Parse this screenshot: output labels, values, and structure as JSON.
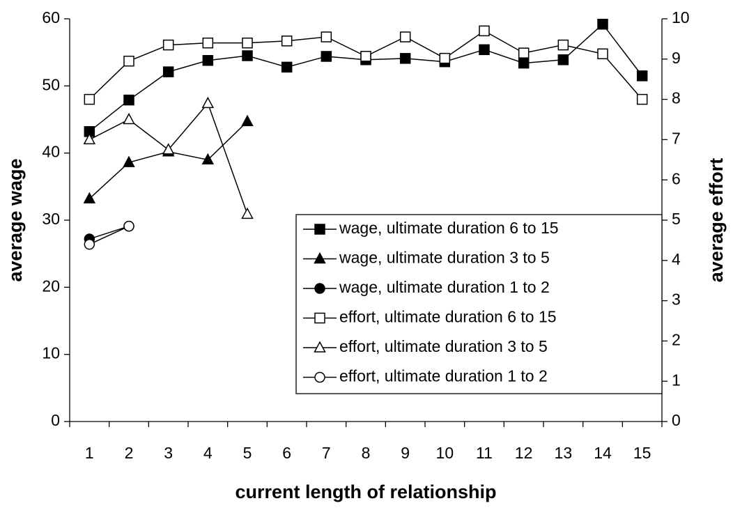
{
  "chart_data": {
    "type": "line",
    "x_label": "current length of relationship",
    "y_label": "average wage",
    "y2_label": "average effort",
    "categories": [
      "1",
      "2",
      "3",
      "4",
      "5",
      "6",
      "7",
      "8",
      "9",
      "10",
      "11",
      "12",
      "13",
      "14",
      "15"
    ],
    "ylim": [
      0,
      60
    ],
    "yticks": [
      0,
      10,
      20,
      30,
      40,
      50,
      60
    ],
    "y2lim": [
      0,
      10
    ],
    "y2ticks": [
      0,
      1,
      2,
      3,
      4,
      5,
      6,
      7,
      8,
      9,
      10
    ],
    "grid": false,
    "legend": "lower right",
    "series": [
      {
        "name": "wage, ultimate duration 6 to 15",
        "color": "#000000",
        "marker": "square",
        "filled": true,
        "values": [
          43.2,
          47.9,
          52.1,
          53.8,
          54.5,
          52.8,
          54.4,
          53.9,
          54.1,
          53.6,
          55.4,
          53.4,
          53.9,
          59.2,
          51.5
        ]
      },
      {
        "name": "wage, ultimate duration 3 to 5",
        "color": "#000000",
        "marker": "triangle",
        "filled": true,
        "values": [
          33.2,
          38.6,
          40.2,
          39.0,
          44.7,
          null,
          null,
          null,
          null,
          null,
          null,
          null,
          null,
          null,
          null
        ]
      },
      {
        "name": "wage, ultimate duration 1 to 2",
        "color": "#000000",
        "marker": "circle",
        "filled": true,
        "values": [
          27.2,
          29.1,
          null,
          null,
          null,
          null,
          null,
          null,
          null,
          null,
          null,
          null,
          null,
          null,
          null
        ]
      },
      {
        "name": "effort, ultimate duration 6 to 15",
        "color": "#000000",
        "marker": "square",
        "filled": false,
        "axis": "y2",
        "values": [
          8.0,
          8.95,
          9.35,
          9.4,
          9.4,
          9.45,
          9.55,
          9.07,
          9.55,
          9.02,
          9.7,
          9.15,
          9.35,
          9.13,
          8.0
        ]
      },
      {
        "name": "effort, ultimate duration 3 to 5",
        "color": "#000000",
        "marker": "triangle",
        "filled": false,
        "axis": "y2",
        "values": [
          7.0,
          7.5,
          6.75,
          7.9,
          5.15,
          null,
          null,
          null,
          null,
          null,
          null,
          null,
          null,
          null,
          null
        ]
      },
      {
        "name": "effort, ultimate duration 1 to 2",
        "color": "#000000",
        "marker": "circle",
        "filled": false,
        "axis": "y2",
        "values": [
          4.4,
          4.85,
          null,
          null,
          null,
          null,
          null,
          null,
          null,
          null,
          null,
          null,
          null,
          null,
          null
        ]
      }
    ]
  }
}
